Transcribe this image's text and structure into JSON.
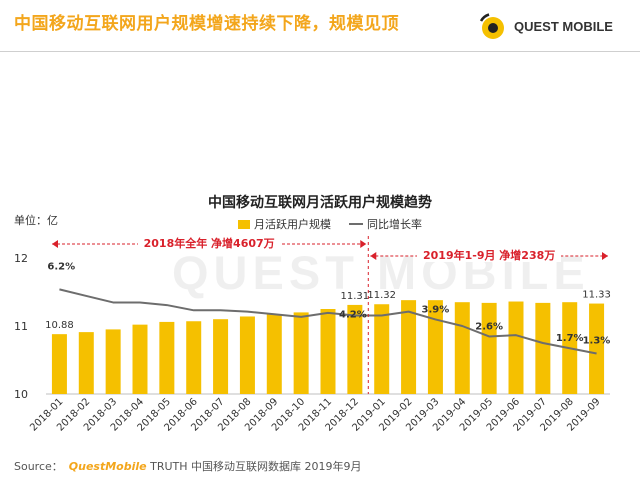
{
  "header": {
    "title": "中国移动互联网用户规模增速持续下降，规模见顶",
    "brand": "QUEST MOBILE"
  },
  "watermark": "QUEST MOBILE",
  "chart_data": {
    "type": "bar+line",
    "title": "中国移动互联网月活跃用户规模趋势",
    "unit_label": "单位：亿",
    "categories": [
      "2018-01",
      "2018-02",
      "2018-03",
      "2018-04",
      "2018-05",
      "2018-06",
      "2018-07",
      "2018-08",
      "2018-09",
      "2018-10",
      "2018-11",
      "2018-12",
      "2019-01",
      "2019-02",
      "2019-03",
      "2019-04",
      "2019-05",
      "2019-06",
      "2019-07",
      "2019-08",
      "2019-09"
    ],
    "series": [
      {
        "name": "月活跃用户规模",
        "type": "bar",
        "color": "#f5c000",
        "values": [
          10.88,
          10.91,
          10.95,
          11.02,
          11.06,
          11.07,
          11.1,
          11.14,
          11.17,
          11.2,
          11.25,
          11.31,
          11.32,
          11.38,
          11.38,
          11.35,
          11.34,
          11.36,
          11.34,
          11.35,
          11.33
        ]
      },
      {
        "name": "同比增长率",
        "type": "line",
        "color": "#6d6d6d",
        "values": [
          6.2,
          5.7,
          5.2,
          5.2,
          5.0,
          4.6,
          4.6,
          4.5,
          4.3,
          4.1,
          4.4,
          4.2,
          4.2,
          4.5,
          3.9,
          3.4,
          2.6,
          2.7,
          2.1,
          1.7,
          1.3
        ]
      }
    ],
    "bar_labels": [
      {
        "index": 0,
        "text": "10.88"
      },
      {
        "index": 11,
        "text": "11.31"
      },
      {
        "index": 12,
        "text": "11.32"
      },
      {
        "index": 20,
        "text": "11.33"
      }
    ],
    "line_labels": [
      {
        "index": 0,
        "text": "6.2%"
      },
      {
        "index": 11,
        "text": "4.2%"
      },
      {
        "index": 14,
        "text": "3.9%"
      },
      {
        "index": 16,
        "text": "2.6%"
      },
      {
        "index": 19,
        "text": "1.7%"
      },
      {
        "index": 20,
        "text": "1.3%"
      }
    ],
    "y_ticks": [
      "12",
      "11",
      "10"
    ],
    "ylim": [
      10,
      12
    ],
    "line_range": [
      -1.8,
      8.6
    ],
    "annotations": [
      {
        "label": "2018年全年 净增4607万",
        "from_index": 0,
        "to_index": 11
      },
      {
        "label": "2019年1-9月 净增238万",
        "from_index": 12,
        "to_index": 20
      }
    ],
    "divider_between": [
      11,
      12
    ],
    "legend": "top-center"
  },
  "source": {
    "label": "Source：",
    "brand": "QuestMobile",
    "text": "TRUTH 中国移动互联网数据库 2019年9月"
  },
  "colors": {
    "accent": "#f3a61c",
    "bar": "#f5c000",
    "line": "#6d6d6d",
    "annotation": "#d9212b"
  }
}
